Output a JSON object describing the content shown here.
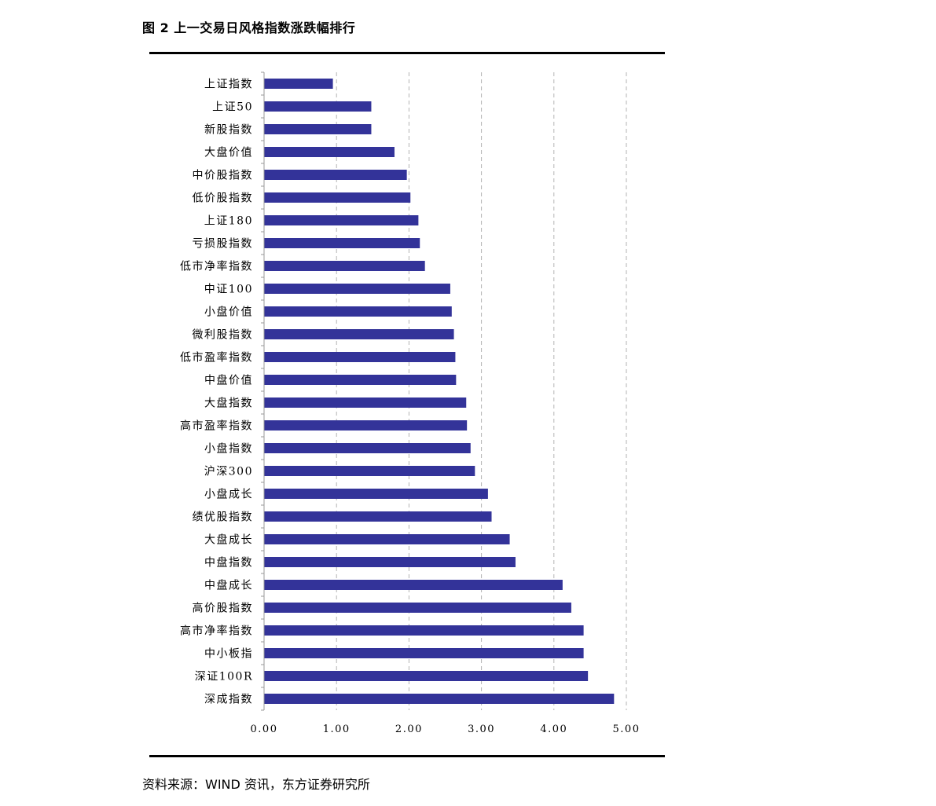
{
  "figure": {
    "title": "图 2  上一交易日风格指数涨跌幅排行",
    "source": "资料来源：WIND 资讯，东方证券研究所"
  },
  "colors": {
    "bar": "#333399",
    "grid": "#b3b3b3",
    "axis": "#999999"
  },
  "chart_data": {
    "type": "bar",
    "orientation": "horizontal",
    "categories": [
      "上证指数",
      "上证50",
      "新股指数",
      "大盘价值",
      "中价股指数",
      "低价股指数",
      "上证180",
      "亏损股指数",
      "低市净率指数",
      "中证100",
      "小盘价值",
      "微利股指数",
      "低市盈率指数",
      "中盘价值",
      "大盘指数",
      "高市盈率指数",
      "小盘指数",
      "沪深300",
      "小盘成长",
      "绩优股指数",
      "大盘成长",
      "中盘指数",
      "中盘成长",
      "高价股指数",
      "高市净率指数",
      "中小板指",
      "深证100R",
      "深成指数"
    ],
    "values": [
      0.95,
      1.48,
      1.48,
      1.8,
      1.97,
      2.02,
      2.13,
      2.15,
      2.22,
      2.57,
      2.59,
      2.62,
      2.64,
      2.65,
      2.79,
      2.8,
      2.85,
      2.91,
      3.09,
      3.14,
      3.39,
      3.47,
      4.12,
      4.24,
      4.41,
      4.41,
      4.47,
      4.83
    ],
    "xlim": [
      0,
      5
    ],
    "xticks": [
      "0.00",
      "1.00",
      "2.00",
      "3.00",
      "4.00",
      "5.00"
    ],
    "grid": "vertical dashed",
    "legend": "none"
  }
}
